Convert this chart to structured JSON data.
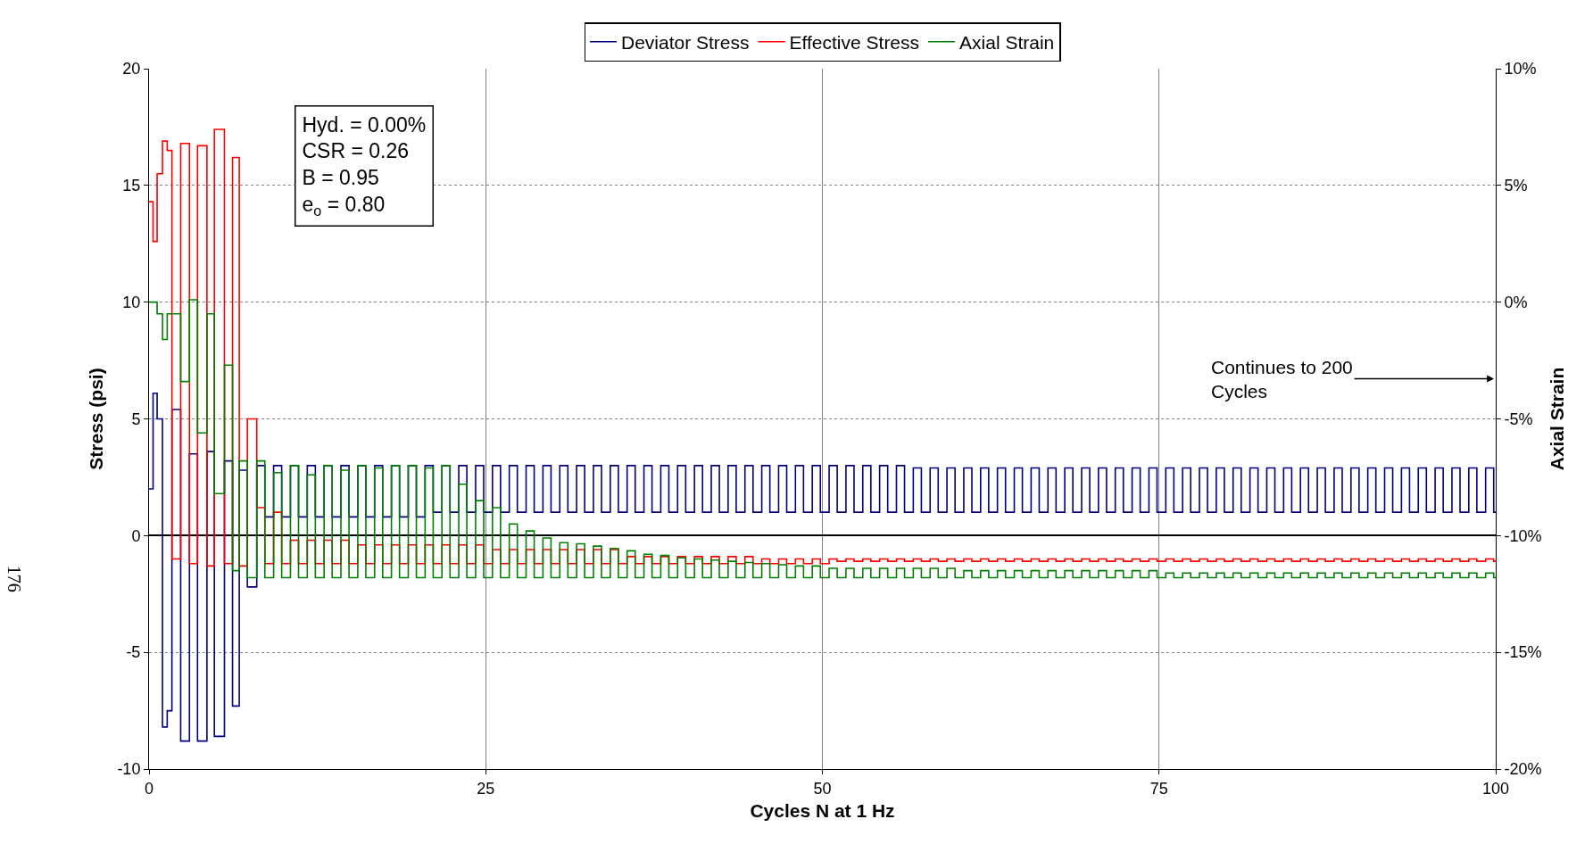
{
  "chart_data": {
    "type": "step",
    "xlabel": "Cycles N at 1 Hz",
    "ylabel": "Stress (psi)",
    "y2label": "Axial Strain",
    "xlim": [
      0,
      100
    ],
    "xticks": [
      0,
      25,
      50,
      75,
      100
    ],
    "ylim": [
      -10,
      20
    ],
    "yticks": [
      -10,
      -5,
      0,
      5,
      10,
      15,
      20
    ],
    "y2lim": [
      -20,
      10
    ],
    "y2ticks": [
      {
        "value": -20,
        "label": "-20%"
      },
      {
        "value": -15,
        "label": "-15%"
      },
      {
        "value": -10,
        "label": "-10%"
      },
      {
        "value": -5,
        "label": "-5%"
      },
      {
        "value": 0,
        "label": "0%"
      },
      {
        "value": 5,
        "label": "5%"
      },
      {
        "value": 10,
        "label": "10%"
      }
    ],
    "grid": true,
    "legend": "top",
    "line_style": "solid",
    "marker": "none",
    "annotations": [
      "Hyd. = 0.00%\nCSR = 0.26\nB = 0.95\ne$_{o}$ = 0.80",
      "Continues to 200\nCycles",
      "176"
    ],
    "x": [
      0,
      0.3,
      0.6,
      1.0,
      1.35,
      1.7,
      2.35,
      3.0,
      3.6,
      4.3,
      4.85,
      5.6,
      6.2,
      6.7,
      7.3,
      8,
      8.6,
      9.25,
      9.85,
      10.5,
      11.1,
      11.75,
      12.35,
      13,
      13.6,
      14.25,
      14.85,
      15.5,
      16.1,
      16.75,
      17.35,
      18,
      18.6,
      19.25,
      19.85,
      20.5,
      21.1,
      21.75,
      22.35,
      23,
      23.6,
      24.25,
      24.85,
      25.5,
      26.1,
      26.75,
      27.35,
      28,
      28.6,
      29.25,
      29.85,
      30.5,
      31.1,
      31.75,
      32.35,
      33,
      33.6,
      34.25,
      34.85,
      35.5,
      36.1,
      36.75,
      37.35,
      38,
      38.6,
      39.25,
      39.85,
      40.5,
      41.1,
      41.75,
      42.35,
      43,
      43.6,
      44.25,
      44.85,
      45.5,
      46.1,
      46.75,
      47.35,
      48,
      48.6,
      49.25,
      49.85,
      50.5,
      51.1,
      51.75,
      52.35,
      53,
      53.6,
      54.25,
      54.85,
      55.5,
      56.1,
      56.75,
      57.35,
      58,
      58.6,
      59.25,
      59.85,
      60.5,
      61.1,
      61.75,
      62.35,
      63,
      63.6,
      64.25,
      64.85,
      65.5,
      66.1,
      66.75,
      67.35,
      68,
      68.6,
      69.25,
      69.85,
      70.5,
      71.1,
      71.75,
      72.35,
      73,
      73.6,
      74.25,
      74.85,
      75.5,
      76.1,
      76.75,
      77.35,
      78,
      78.6,
      79.25,
      79.85,
      80.5,
      81.1,
      81.75,
      82.35,
      83,
      83.6,
      84.25,
      84.85,
      85.5,
      86.1,
      86.75,
      87.35,
      88,
      88.6,
      89.25,
      89.85,
      90.5,
      91.1,
      91.75,
      92.35,
      93,
      93.6,
      94.25,
      94.85,
      95.5,
      96.1,
      96.75,
      97.35,
      98,
      98.6,
      99.25,
      99.85,
      100
    ],
    "series": [
      {
        "name": "Deviator Stress",
        "color": "#000080",
        "values": [
          2.0,
          6.1,
          5.0,
          -8.2,
          -7.5,
          5.4,
          -8.8,
          3.5,
          -8.8,
          3.6,
          -8.6,
          3.2,
          -7.3,
          2.8,
          -2.2,
          3.0,
          0.8,
          3.0,
          0.8,
          3.0,
          0.8,
          3.0,
          0.8,
          3.0,
          0.8,
          3.0,
          0.8,
          3.0,
          0.8,
          3.0,
          0.8,
          3.0,
          0.8,
          3.0,
          0.8,
          3.0,
          1.0,
          3.0,
          1.0,
          3.0,
          1.0,
          3.0,
          1.0,
          3.0,
          1.0,
          3.0,
          1.0,
          3.0,
          1.0,
          3.0,
          1.0,
          3.0,
          1.0,
          3.0,
          1.0,
          3.0,
          1.0,
          3.0,
          1.0,
          3.0,
          1.0,
          3.0,
          1.0,
          3.0,
          1.0,
          3.0,
          1.0,
          3.0,
          1.0,
          3.0,
          1.0,
          3.0,
          1.0,
          3.0,
          1.0,
          3.0,
          1.0,
          3.0,
          1.0,
          3.0,
          1.0,
          3.0,
          1.0,
          3.0,
          1.0,
          3.0,
          1.0,
          3.0,
          1.0,
          3.0,
          1.0,
          3.0,
          1.0,
          2.9,
          1.0,
          2.9,
          1.0,
          2.9,
          1.0,
          2.9,
          1.0,
          2.9,
          1.0,
          2.9,
          1.0,
          2.9,
          1.0,
          2.9,
          1.0,
          2.9,
          1.0,
          2.9,
          1.0,
          2.9,
          1.0,
          2.9,
          1.0,
          2.9,
          1.0,
          2.9,
          1.0,
          2.9,
          1.0,
          2.9,
          1.0,
          2.9,
          1.0,
          2.9,
          1.0,
          2.9,
          1.0,
          2.9,
          1.0,
          2.9,
          1.0,
          2.9,
          1.0,
          2.9,
          1.0,
          2.9,
          1.0,
          2.9,
          1.0,
          2.9,
          1.0,
          2.9,
          1.0,
          2.9,
          1.0,
          2.9,
          1.0,
          2.9,
          1.0,
          2.9,
          1.0,
          2.9,
          1.0,
          2.9,
          1.0,
          2.9,
          1.0,
          2.9,
          1.0,
          1.0
        ]
      },
      {
        "name": "Effective Stress",
        "color": "#ff0000",
        "values": [
          14.3,
          12.6,
          15.5,
          16.9,
          16.5,
          -1.0,
          16.8,
          -1.2,
          16.7,
          -1.3,
          17.4,
          -1.2,
          16.2,
          -1.3,
          5.0,
          1.2,
          -1.2,
          1.0,
          -1.2,
          -0.2,
          -1.2,
          -0.2,
          -1.2,
          -0.2,
          -1.2,
          -0.2,
          -1.2,
          -0.4,
          -1.2,
          -0.4,
          -1.2,
          -0.4,
          -1.2,
          -0.4,
          -1.2,
          -0.4,
          -1.2,
          -0.4,
          -1.2,
          -0.4,
          -1.2,
          -0.4,
          -1.2,
          -0.6,
          -1.2,
          -0.6,
          -1.2,
          -0.6,
          -1.2,
          -0.6,
          -1.2,
          -0.6,
          -1.2,
          -0.6,
          -1.2,
          -0.6,
          -1.2,
          -0.6,
          -1.2,
          -0.9,
          -1.2,
          -0.9,
          -1.2,
          -0.9,
          -1.2,
          -0.9,
          -1.2,
          -0.9,
          -1.2,
          -0.9,
          -1.2,
          -0.9,
          -1.2,
          -0.9,
          -1.2,
          -1.0,
          -1.2,
          -1.0,
          -1.2,
          -1.0,
          -1.2,
          -1.0,
          -1.2,
          -1.0,
          -1.1,
          -1.0,
          -1.1,
          -1.0,
          -1.1,
          -1.0,
          -1.1,
          -1.0,
          -1.1,
          -1.0,
          -1.1,
          -1.0,
          -1.1,
          -1.0,
          -1.1,
          -1.0,
          -1.1,
          -1.0,
          -1.1,
          -1.0,
          -1.1,
          -1.0,
          -1.1,
          -1.0,
          -1.1,
          -1.0,
          -1.1,
          -1.0,
          -1.1,
          -1.0,
          -1.1,
          -1.0,
          -1.1,
          -1.0,
          -1.1,
          -1.0,
          -1.1,
          -1.0,
          -1.1,
          -1.0,
          -1.1,
          -1.0,
          -1.1,
          -1.0,
          -1.1,
          -1.0,
          -1.1,
          -1.0,
          -1.1,
          -1.0,
          -1.1,
          -1.0,
          -1.1,
          -1.0,
          -1.1,
          -1.0,
          -1.1,
          -1.0,
          -1.1,
          -1.0,
          -1.1,
          -1.0,
          -1.1,
          -1.0,
          -1.1,
          -1.0,
          -1.1,
          -1.0,
          -1.1,
          -1.0,
          -1.1,
          -1.0,
          -1.1,
          -1.0,
          -1.1,
          -1.0,
          -1.1,
          -1.0,
          -1.1,
          -1.1
        ]
      },
      {
        "name": "Axial Strain",
        "color": "#008000",
        "axis": "y2",
        "values": [
          0,
          0,
          -0.5,
          -1.6,
          -0.5,
          -0.5,
          -3.4,
          0.1,
          -5.6,
          -0.5,
          -8.2,
          -2.7,
          -11.5,
          -6.8,
          -11.8,
          -6.8,
          -11.8,
          -7.3,
          -11.8,
          -7.0,
          -11.8,
          -7.4,
          -11.8,
          -7.0,
          -11.8,
          -7.2,
          -11.8,
          -7.0,
          -11.8,
          -7.1,
          -11.8,
          -7.0,
          -11.8,
          -7.0,
          -11.8,
          -7.1,
          -11.8,
          -7.0,
          -11.8,
          -7.8,
          -11.8,
          -8.5,
          -11.8,
          -8.8,
          -11.8,
          -9.5,
          -11.8,
          -9.8,
          -11.8,
          -10.1,
          -11.8,
          -10.3,
          -11.8,
          -10.35,
          -11.8,
          -10.45,
          -11.8,
          -10.55,
          -11.8,
          -10.65,
          -11.8,
          -10.8,
          -11.8,
          -10.85,
          -11.8,
          -10.95,
          -11.8,
          -11.0,
          -11.8,
          -11.05,
          -11.8,
          -11.1,
          -11.8,
          -11.15,
          -11.8,
          -11.2,
          -11.8,
          -11.25,
          -11.8,
          -11.3,
          -11.8,
          -11.3,
          -11.8,
          -11.4,
          -11.8,
          -11.4,
          -11.8,
          -11.4,
          -11.8,
          -11.4,
          -11.8,
          -11.4,
          -11.8,
          -11.4,
          -11.8,
          -11.4,
          -11.8,
          -11.4,
          -11.8,
          -11.5,
          -11.8,
          -11.5,
          -11.8,
          -11.5,
          -11.8,
          -11.5,
          -11.8,
          -11.5,
          -11.8,
          -11.5,
          -11.8,
          -11.5,
          -11.8,
          -11.5,
          -11.8,
          -11.5,
          -11.8,
          -11.5,
          -11.8,
          -11.5,
          -11.8,
          -11.5,
          -11.8,
          -11.6,
          -11.8,
          -11.6,
          -11.8,
          -11.6,
          -11.8,
          -11.6,
          -11.8,
          -11.6,
          -11.8,
          -11.6,
          -11.8,
          -11.6,
          -11.8,
          -11.6,
          -11.8,
          -11.6,
          -11.8,
          -11.6,
          -11.8,
          -11.6,
          -11.8,
          -11.6,
          -11.8,
          -11.6,
          -11.8,
          -11.6,
          -11.8,
          -11.6,
          -11.8,
          -11.6,
          -11.8,
          -11.6,
          -11.8,
          -11.6,
          -11.8,
          -11.6,
          -11.8,
          -11.6,
          -11.8,
          -11.8
        ]
      }
    ]
  }
}
